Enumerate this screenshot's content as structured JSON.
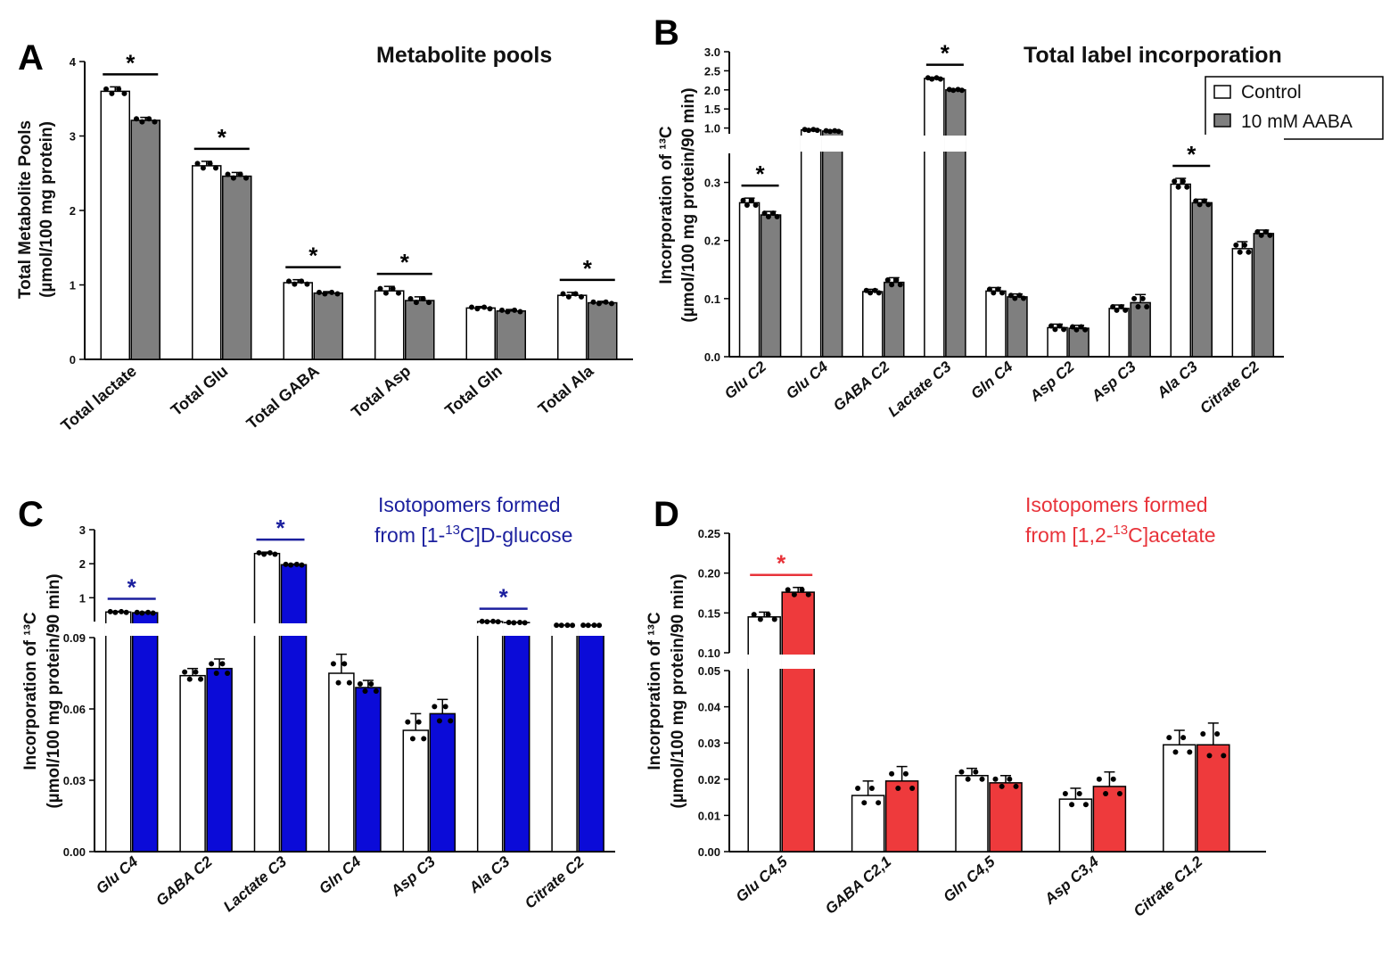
{
  "legend": {
    "control": "Control",
    "treatment": "10 mM AABA"
  },
  "colors": {
    "control": "#ffffff",
    "grey": "#7f7f7f",
    "blue": "#0b0bd8",
    "red": "#ee3a3c",
    "darkblue": "#1b1f9e",
    "redtext": "#e8333a"
  },
  "chart_data": [
    {
      "letter": "A",
      "type": "bar",
      "title": "Metabolite pools",
      "ylabel": [
        "Total  Metabolite Pools",
        "(µmol/100 mg protein)"
      ],
      "ylim": [
        0,
        4
      ],
      "yticks": [
        "0",
        "1",
        "2",
        "3",
        "4"
      ],
      "categories": [
        "Total lactate",
        "Total Glu",
        "Total GABA",
        "Total Asp",
        "Total Gln",
        "Total Ala"
      ],
      "series": [
        {
          "name": "Control",
          "values": [
            3.6,
            2.6,
            1.03,
            0.92,
            0.69,
            0.86
          ],
          "err": [
            0.06,
            0.06,
            0.04,
            0.06,
            0.02,
            0.04
          ]
        },
        {
          "name": "10 mM AABA",
          "values": [
            3.21,
            2.46,
            0.89,
            0.79,
            0.65,
            0.76
          ],
          "err": [
            0.04,
            0.05,
            0.02,
            0.05,
            0.02,
            0.02
          ]
        }
      ],
      "significant": [
        true,
        true,
        true,
        true,
        false,
        true
      ],
      "star": "*"
    },
    {
      "letter": "B",
      "type": "bar",
      "title": "Total label incorporation",
      "ylabel": [
        "Incorporation of ¹³C",
        "(µmol/100 mg protein/90 min)"
      ],
      "ylim_lower": [
        0,
        0.35
      ],
      "ylim_upper": [
        0.85,
        3.0
      ],
      "yticks_lower": [
        "0.0",
        "0.1",
        "0.2",
        "0.3"
      ],
      "yticks_upper": [
        "1.0",
        "1.5",
        "2.0",
        "2.5",
        "3.0"
      ],
      "categories": [
        "Glu C2",
        "Glu C4",
        "GABA C2",
        "Lactate C3",
        "Gln C4",
        "Asp C2",
        "Asp C3",
        "Ala C3",
        "Citrate C2"
      ],
      "series": [
        {
          "name": "Control",
          "values": [
            0.265,
            0.95,
            0.112,
            2.3,
            0.113,
            0.05,
            0.083,
            0.297,
            0.186
          ],
          "err": [
            0.008,
            0.02,
            0.004,
            0.03,
            0.006,
            0.006,
            0.006,
            0.01,
            0.012
          ]
        },
        {
          "name": "10 mM AABA",
          "values": [
            0.244,
            0.92,
            0.128,
            2.0,
            0.103,
            0.049,
            0.093,
            0.265,
            0.212
          ],
          "err": [
            0.006,
            0.02,
            0.008,
            0.02,
            0.005,
            0.005,
            0.014,
            0.006,
            0.006
          ]
        }
      ],
      "significant": [
        true,
        false,
        false,
        true,
        false,
        false,
        false,
        true,
        false
      ],
      "star": "*"
    },
    {
      "letter": "C",
      "type": "bar",
      "title": "Isotopomers formed",
      "title2": [
        "from [1-",
        "13",
        "C]D-glucose"
      ],
      "ylabel": [
        "Incorporation of ¹³C",
        "(µmol/100 mg protein/90 min)"
      ],
      "ylim_lower": [
        0,
        0.09
      ],
      "ylim_upper": [
        0.3,
        3
      ],
      "yticks_lower": [
        "0.00",
        "0.03",
        "0.06",
        "0.09"
      ],
      "yticks_upper": [
        "1",
        "2",
        "3"
      ],
      "categories": [
        "Glu C4",
        "GABA C2",
        "Lactate C3",
        "Gln C4",
        "Asp C3",
        "Ala C3",
        "Citrate C2"
      ],
      "series": [
        {
          "name": "Control",
          "values": [
            0.58,
            0.074,
            2.3,
            0.075,
            0.051,
            0.3,
            0.19
          ],
          "err": [
            0.02,
            0.003,
            0.04,
            0.008,
            0.007,
            0.01,
            0.005
          ]
        },
        {
          "name": "10 mM AABA",
          "values": [
            0.56,
            0.077,
            1.97,
            0.069,
            0.058,
            0.27,
            0.19
          ],
          "err": [
            0.02,
            0.004,
            0.02,
            0.003,
            0.006,
            0.01,
            0.005
          ]
        }
      ],
      "significant": [
        true,
        false,
        true,
        false,
        false,
        true,
        false
      ],
      "star": "*"
    },
    {
      "letter": "D",
      "type": "bar",
      "title": "Isotopomers formed",
      "title2": [
        "from [1,2-",
        "13",
        "C]acetate"
      ],
      "ylabel": [
        "Incorporation of ¹³C",
        "(µmol/100 mg protein/90 min)"
      ],
      "ylim_lower": [
        0,
        0.05
      ],
      "ylim_upper": [
        0.1,
        0.25
      ],
      "yticks_lower": [
        "0.00",
        "0.01",
        "0.02",
        "0.03",
        "0.04",
        "0.05"
      ],
      "yticks_upper": [
        "0.10",
        "0.15",
        "0.20",
        "0.25"
      ],
      "categories": [
        "Glu C4,5",
        "GABA C2,1",
        "Gln C4,5",
        "Asp C3,4",
        "Citrate C1,2"
      ],
      "series": [
        {
          "name": "Control",
          "values": [
            0.145,
            0.0155,
            0.021,
            0.0145,
            0.0295
          ],
          "err": [
            0.006,
            0.004,
            0.002,
            0.003,
            0.004
          ]
        },
        {
          "name": "10 mM AABA",
          "values": [
            0.176,
            0.0195,
            0.019,
            0.018,
            0.0295
          ],
          "err": [
            0.006,
            0.004,
            0.002,
            0.004,
            0.006
          ]
        }
      ],
      "significant": [
        true,
        false,
        false,
        false,
        false
      ],
      "star": "*"
    }
  ]
}
